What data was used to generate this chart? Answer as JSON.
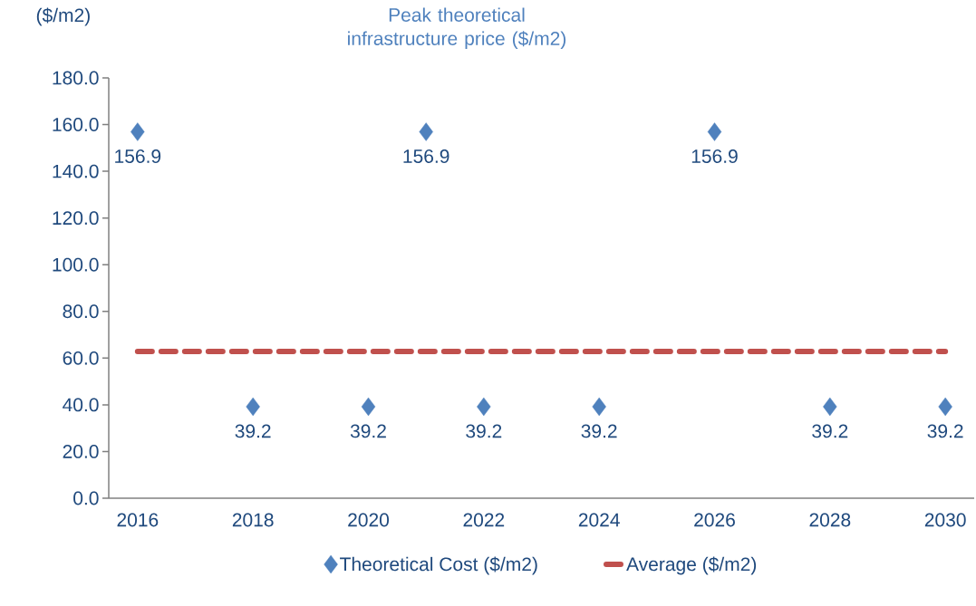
{
  "chart_data": {
    "type": "scatter",
    "title": "Peak theoretical infrastructure price ($/m2)",
    "ylabel": "($/m2)",
    "categories": [
      "2016",
      null,
      "2018",
      null,
      "2020",
      null,
      "2022",
      null,
      "2024",
      null,
      "2026",
      null,
      "2028",
      null,
      "2030"
    ],
    "series": [
      {
        "name": "Theoretical Cost ($/m2)",
        "color": "#4f81bd",
        "marker": "diamond",
        "values": [
          156.9,
          null,
          39.2,
          null,
          39.2,
          156.9,
          39.2,
          null,
          39.2,
          null,
          156.9,
          null,
          39.2,
          null,
          39.2
        ],
        "value_labels": [
          "156.9",
          null,
          "39.2",
          null,
          "39.2",
          "156.9",
          "39.2",
          null,
          "39.2",
          null,
          "156.9",
          null,
          "39.2",
          null,
          "39.2"
        ]
      },
      {
        "name": "Average ($/m2)",
        "type": "line",
        "color": "#c0504d",
        "line_style": "dashed",
        "marker": "none",
        "values": [
          62.8,
          62.8,
          62.8,
          62.8,
          62.8,
          62.8,
          62.8,
          62.8,
          62.8,
          62.8,
          62.8,
          62.8,
          62.8,
          62.8,
          62.8
        ]
      }
    ],
    "ylim": [
      0,
      180
    ],
    "yticks": [
      {
        "value": 0,
        "label": "0.0"
      },
      {
        "value": 20,
        "label": "20.0"
      },
      {
        "value": 40,
        "label": "40.0"
      },
      {
        "value": 60,
        "label": "60.0"
      },
      {
        "value": 80,
        "label": "80.0"
      },
      {
        "value": 100,
        "label": "100.0"
      },
      {
        "value": 120,
        "label": "120.0"
      },
      {
        "value": 140,
        "label": "140.0"
      },
      {
        "value": 160,
        "label": "160.0"
      },
      {
        "value": 180,
        "label": "180.0"
      }
    ],
    "grid": false,
    "legend": "bottom"
  }
}
